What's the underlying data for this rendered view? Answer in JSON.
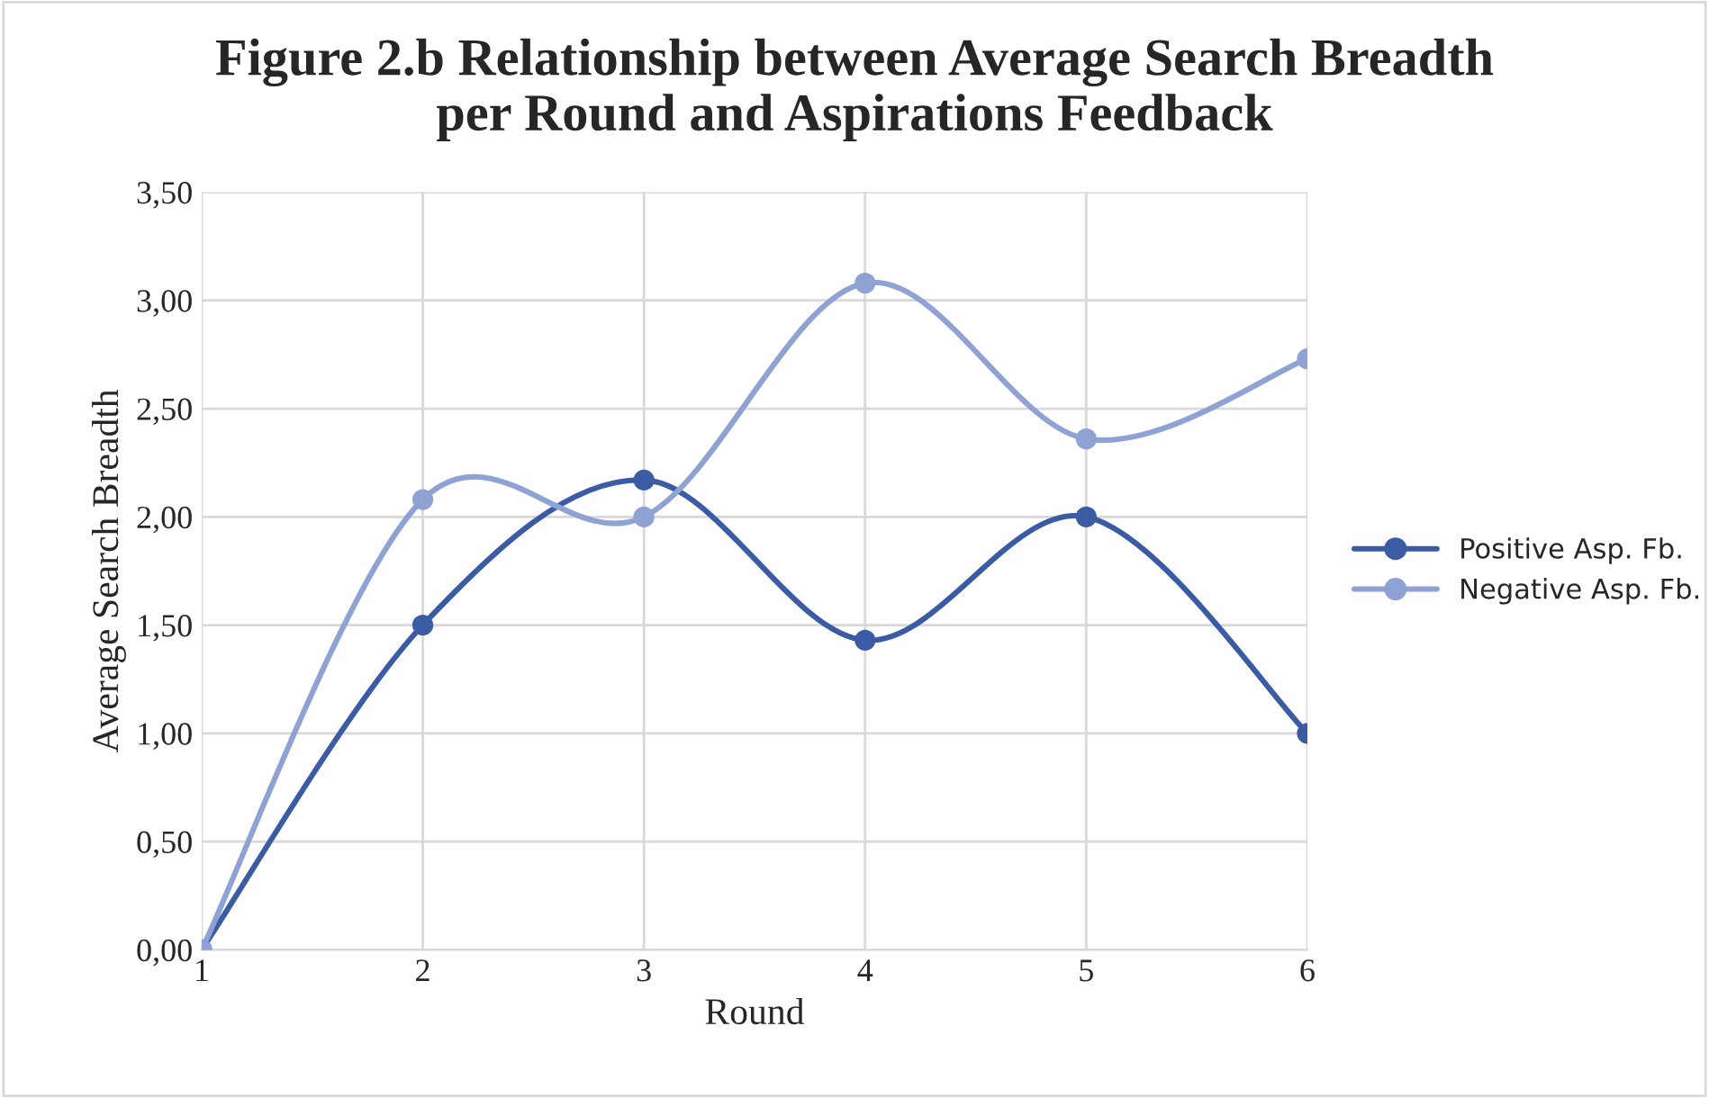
{
  "chart_data": {
    "type": "line",
    "title": "Figure 2.b Relationship between Average Search Breadth\nper Round and Aspirations Feedback",
    "xlabel": "Round",
    "ylabel": "Average Search Breadth",
    "x": [
      1,
      2,
      3,
      4,
      5,
      6
    ],
    "series": [
      {
        "name": "Positive Asp. Fb.",
        "color": "#3b5ba5",
        "values": [
          0,
          1.5,
          2.17,
          1.43,
          2.0,
          1.0
        ]
      },
      {
        "name": "Negative Asp. Fb.",
        "color": "#8fa2d4",
        "values": [
          0,
          2.08,
          2.0,
          3.08,
          2.36,
          2.73
        ]
      }
    ],
    "xlim": [
      1,
      6
    ],
    "xticks": [
      1,
      2,
      3,
      4,
      5,
      6
    ],
    "ylim": [
      0,
      3.5
    ],
    "yticks": [
      {
        "value": 0,
        "label": "0,00"
      },
      {
        "value": 0.5,
        "label": "0,50"
      },
      {
        "value": 1,
        "label": "1,00"
      },
      {
        "value": 1.5,
        "label": "1,50"
      },
      {
        "value": 2,
        "label": "2,00"
      },
      {
        "value": 2.5,
        "label": "2,50"
      },
      {
        "value": 3,
        "label": "3,00"
      },
      {
        "value": 3.5,
        "label": "3,50"
      }
    ],
    "grid": true,
    "legend": "right",
    "marker": "circle",
    "line_style": "solid"
  }
}
